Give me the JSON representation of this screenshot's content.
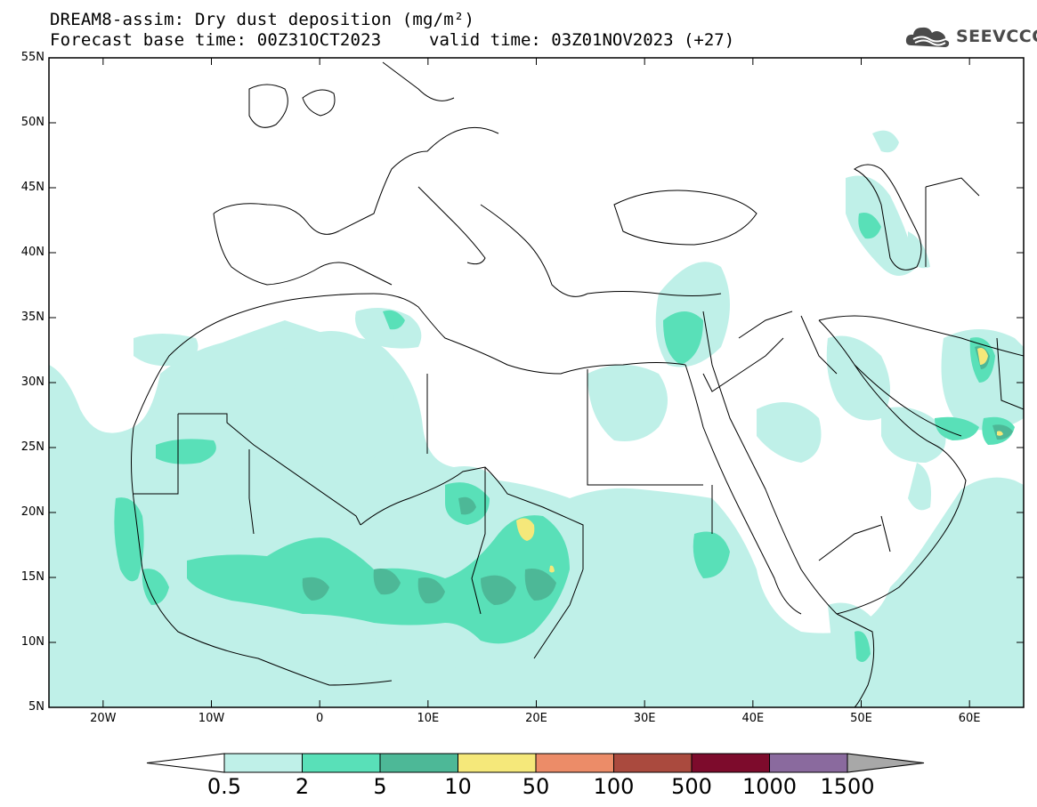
{
  "header": {
    "title_line1": "DREAM8-assim: Dry dust deposition (mg/m²)",
    "title_line2": "Forecast base time: 00Z31OCT2023",
    "valid_time": "valid time: 03Z01NOV2023 (+27)"
  },
  "logo": {
    "text": "SEEVCCC",
    "icon": "cloud-logo-icon"
  },
  "map": {
    "lat_labels": [
      "55N",
      "50N",
      "45N",
      "40N",
      "35N",
      "30N",
      "25N",
      "20N",
      "15N",
      "10N",
      "5N"
    ],
    "lon_labels": [
      "20W",
      "10W",
      "0",
      "10E",
      "20E",
      "30E",
      "40E",
      "50E",
      "60E"
    ],
    "extent": {
      "lon_min": -25,
      "lon_max": 65,
      "lat_min": 5,
      "lat_max": 55
    }
  },
  "colorbar": {
    "labels": [
      "0.5",
      "2",
      "5",
      "10",
      "50",
      "100",
      "500",
      "1000",
      "1500"
    ],
    "colors": [
      "#bff0e8",
      "#59e0b8",
      "#4db897",
      "#f5e87a",
      "#ec8c68",
      "#aa4a3e",
      "#7d0b2c",
      "#8a6a9e"
    ],
    "under_color": "#ffffff",
    "over_color": "#a8a8a8"
  },
  "legend_colors": {
    "level1": "#bff0e8",
    "level2": "#59e0b8",
    "level3": "#4db897",
    "level4": "#f5e87a"
  }
}
